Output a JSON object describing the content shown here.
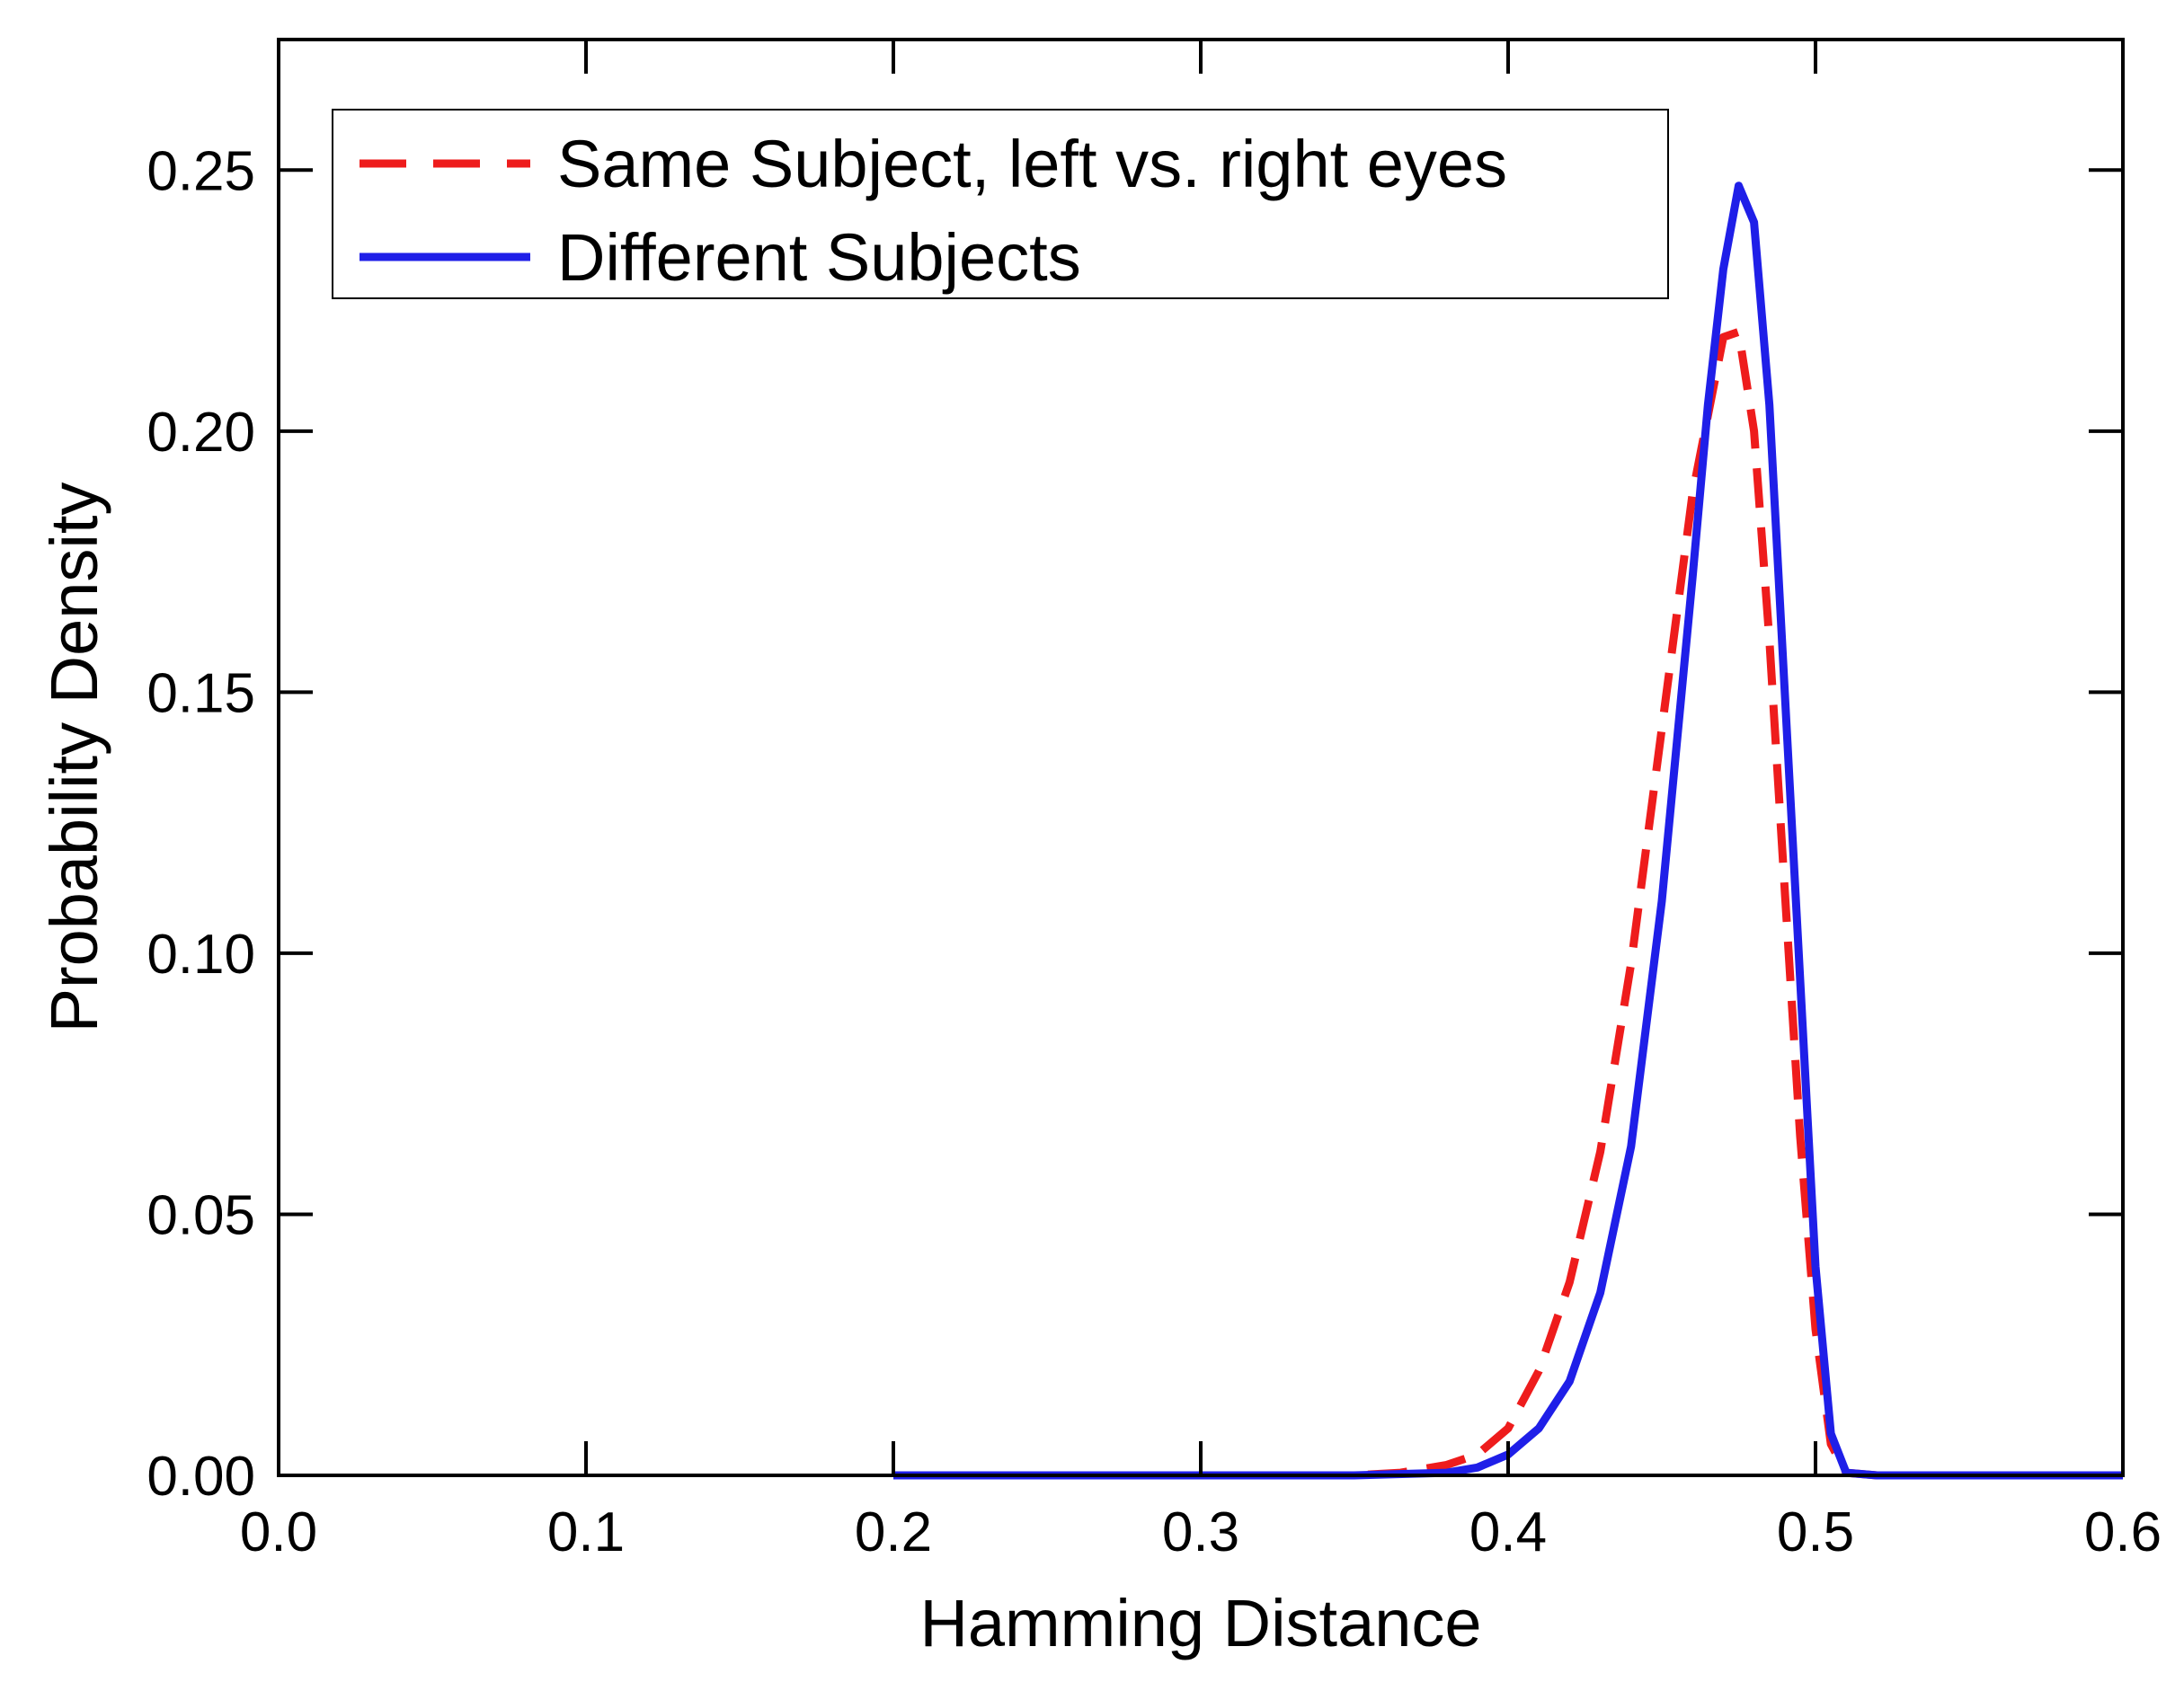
{
  "chart_data": {
    "type": "line",
    "title": "",
    "xlabel": "Hamming Distance",
    "ylabel": "Probability Density",
    "xlim": [
      0.0,
      0.6
    ],
    "ylim": [
      0.0,
      0.275
    ],
    "xticks": [
      0.0,
      0.1,
      0.2,
      0.3,
      0.4,
      0.5,
      0.6
    ],
    "xtick_labels": [
      "0.0",
      "0.1",
      "0.2",
      "0.3",
      "0.4",
      "0.5",
      "0.6"
    ],
    "yticks": [
      0.0,
      0.05,
      0.1,
      0.15,
      0.2,
      0.25
    ],
    "ytick_labels": [
      "0.00",
      "0.05",
      "0.10",
      "0.15",
      "0.20",
      "0.25"
    ],
    "grid": false,
    "legend_position": "top-left",
    "series": [
      {
        "name": "Same Subject, left vs. right eyes",
        "color": "#ee1c1c",
        "style": "dashed",
        "x": [
          0.2,
          0.3,
          0.35,
          0.365,
          0.38,
          0.39,
          0.4,
          0.41,
          0.42,
          0.43,
          0.44,
          0.45,
          0.46,
          0.47,
          0.475,
          0.48,
          0.485,
          0.49,
          0.495,
          0.5,
          0.505,
          0.51,
          0.52,
          0.6
        ],
        "values": [
          0.0,
          0.0,
          0.0,
          0.0005,
          0.002,
          0.004,
          0.009,
          0.02,
          0.037,
          0.062,
          0.098,
          0.143,
          0.188,
          0.218,
          0.219,
          0.2,
          0.16,
          0.112,
          0.065,
          0.028,
          0.006,
          0.0005,
          0.0,
          0.0
        ]
      },
      {
        "name": "Different Subjects",
        "color": "#1f1fe8",
        "style": "solid",
        "x": [
          0.2,
          0.35,
          0.38,
          0.39,
          0.4,
          0.41,
          0.42,
          0.43,
          0.44,
          0.45,
          0.46,
          0.465,
          0.47,
          0.475,
          0.48,
          0.485,
          0.49,
          0.495,
          0.5,
          0.505,
          0.51,
          0.52,
          0.6
        ],
        "values": [
          0.0,
          0.0,
          0.0005,
          0.0015,
          0.004,
          0.009,
          0.018,
          0.035,
          0.063,
          0.11,
          0.172,
          0.205,
          0.231,
          0.247,
          0.24,
          0.205,
          0.15,
          0.095,
          0.04,
          0.008,
          0.0005,
          0.0,
          0.0
        ]
      }
    ]
  }
}
